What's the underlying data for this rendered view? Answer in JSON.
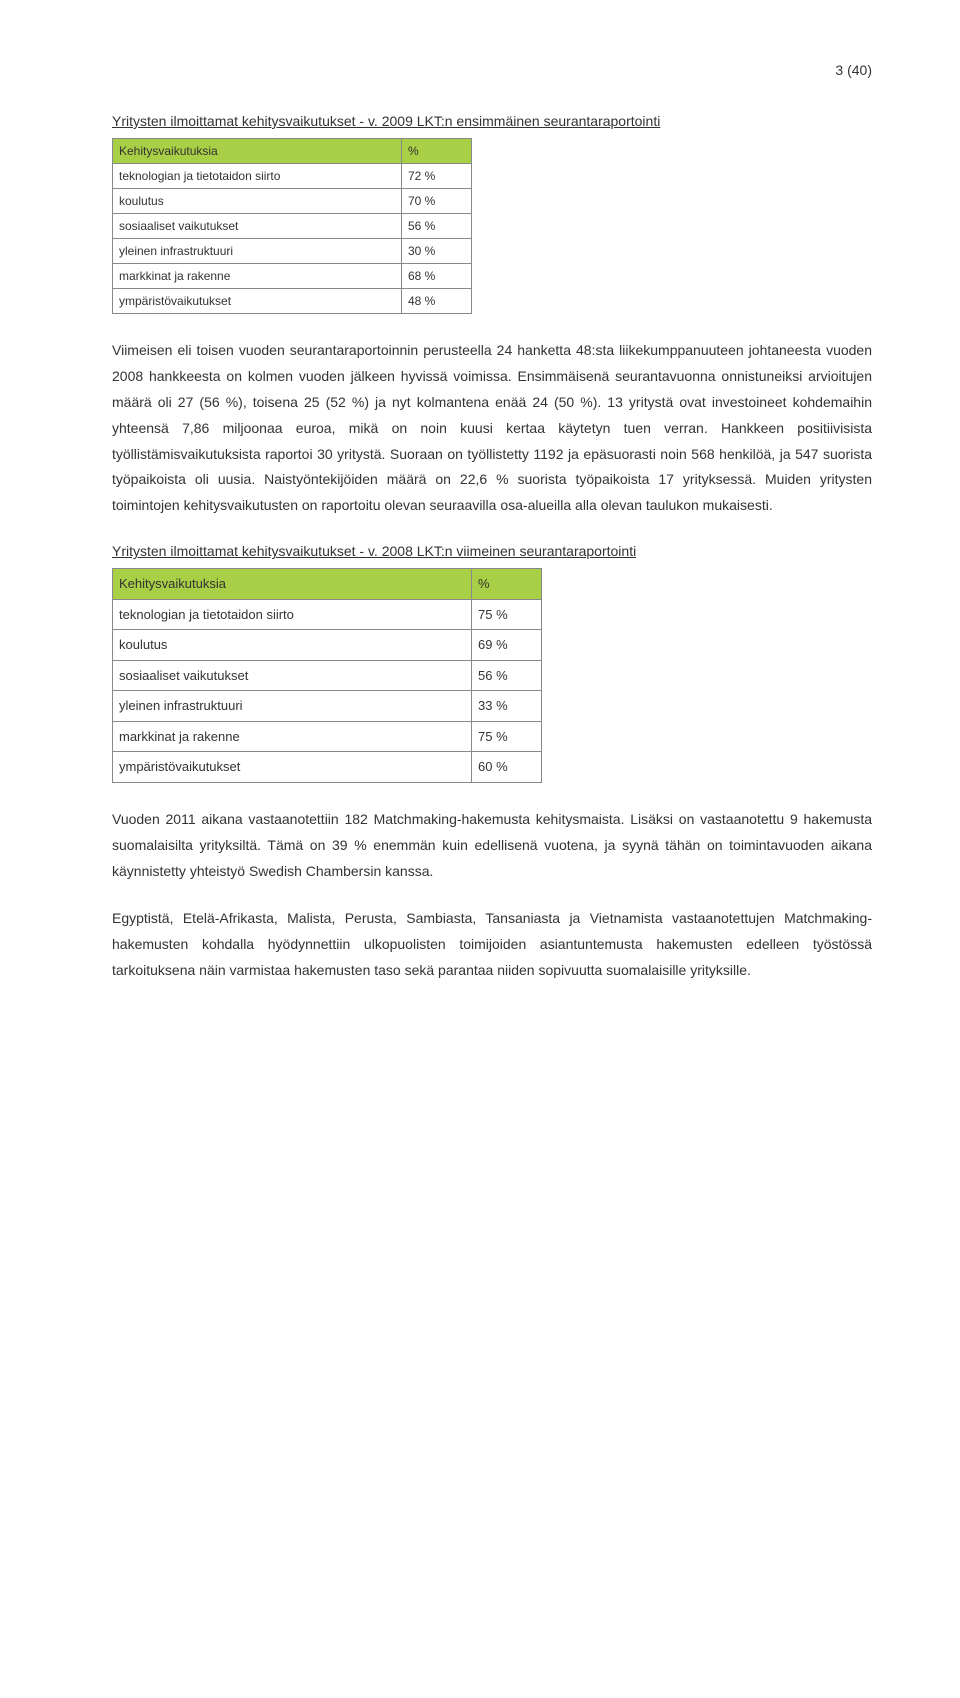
{
  "page_number": "3 (40)",
  "table1": {
    "title": "Yritysten ilmoittamat kehitysvaikutukset - v. 2009 LKT:n ensimmäinen seurantaraportointi",
    "header_bg": "#a8cf45",
    "col1": "Kehitysvaikutuksia",
    "col2": "%",
    "rows": [
      {
        "label": "teknologian ja tietotaidon siirto",
        "value": "72 %"
      },
      {
        "label": "koulutus",
        "value": "70 %"
      },
      {
        "label": "sosiaaliset vaikutukset",
        "value": "56 %"
      },
      {
        "label": "yleinen infrastruktuuri",
        "value": "30 %"
      },
      {
        "label": "markkinat ja rakenne",
        "value": "68 %"
      },
      {
        "label": "ympäristövaikutukset",
        "value": "48 %"
      }
    ]
  },
  "para1": "Viimeisen eli toisen vuoden seurantaraportoinnin perusteella 24 hanketta 48:sta liikekumppanuuteen johtaneesta vuoden 2008 hankkeesta on kolmen vuoden jälkeen hyvissä voimissa. Ensimmäisenä seurantavuonna onnistuneiksi arvioitujen määrä oli 27 (56 %), toisena 25 (52 %) ja nyt kolmantena enää 24 (50 %). 13 yritystä ovat investoineet kohdemaihin yhteensä 7,86 miljoonaa euroa, mikä on noin kuusi kertaa käytetyn tuen verran. Hankkeen positiivisista työllistämisvaikutuksista raportoi 30 yritystä. Suoraan on työllistetty 1192 ja epäsuorasti noin 568 henkilöä, ja 547 suorista työpaikoista oli uusia. Naistyöntekijöiden määrä on 22,6 % suorista työpaikoista 17 yrityksessä. Muiden yritysten toimintojen kehitysvaikutusten on raportoitu olevan seuraavilla osa-alueilla alla olevan taulukon mukaisesti.",
  "table2": {
    "title": "Yritysten ilmoittamat kehitysvaikutukset - v. 2008 LKT:n viimeinen seurantaraportointi",
    "header_bg": "#a8cf45",
    "col1": "Kehitysvaikutuksia",
    "col2": "%",
    "rows": [
      {
        "label": "teknologian ja tietotaidon siirto",
        "value": "75 %"
      },
      {
        "label": "koulutus",
        "value": "69 %"
      },
      {
        "label": "sosiaaliset vaikutukset",
        "value": "56 %"
      },
      {
        "label": "yleinen infrastruktuuri",
        "value": "33 %"
      },
      {
        "label": "markkinat ja rakenne",
        "value": "75 %"
      },
      {
        "label": "ympäristövaikutukset",
        "value": "60 %"
      }
    ]
  },
  "para2": "Vuoden 2011 aikana vastaanotettiin 182 Matchmaking-hakemusta kehitysmaista. Lisäksi on vastaanotettu 9 hakemusta suomalaisilta yrityksiltä. Tämä on 39 % enemmän kuin edellisenä vuotena, ja syynä tähän on toimintavuoden aikana käynnistetty yhteistyö Swedish Chambersin kanssa.",
  "para3": "Egyptistä, Etelä-Afrikasta, Malista, Perusta, Sambiasta, Tansaniasta ja Vietnamista vastaanotettujen Matchmaking-hakemusten kohdalla hyödynnettiin ulkopuolisten toimijoiden asiantuntemusta hakemusten edelleen työstössä tarkoituksena näin varmistaa hakemusten taso sekä parantaa niiden sopivuutta suomalaisille yrityksille."
}
